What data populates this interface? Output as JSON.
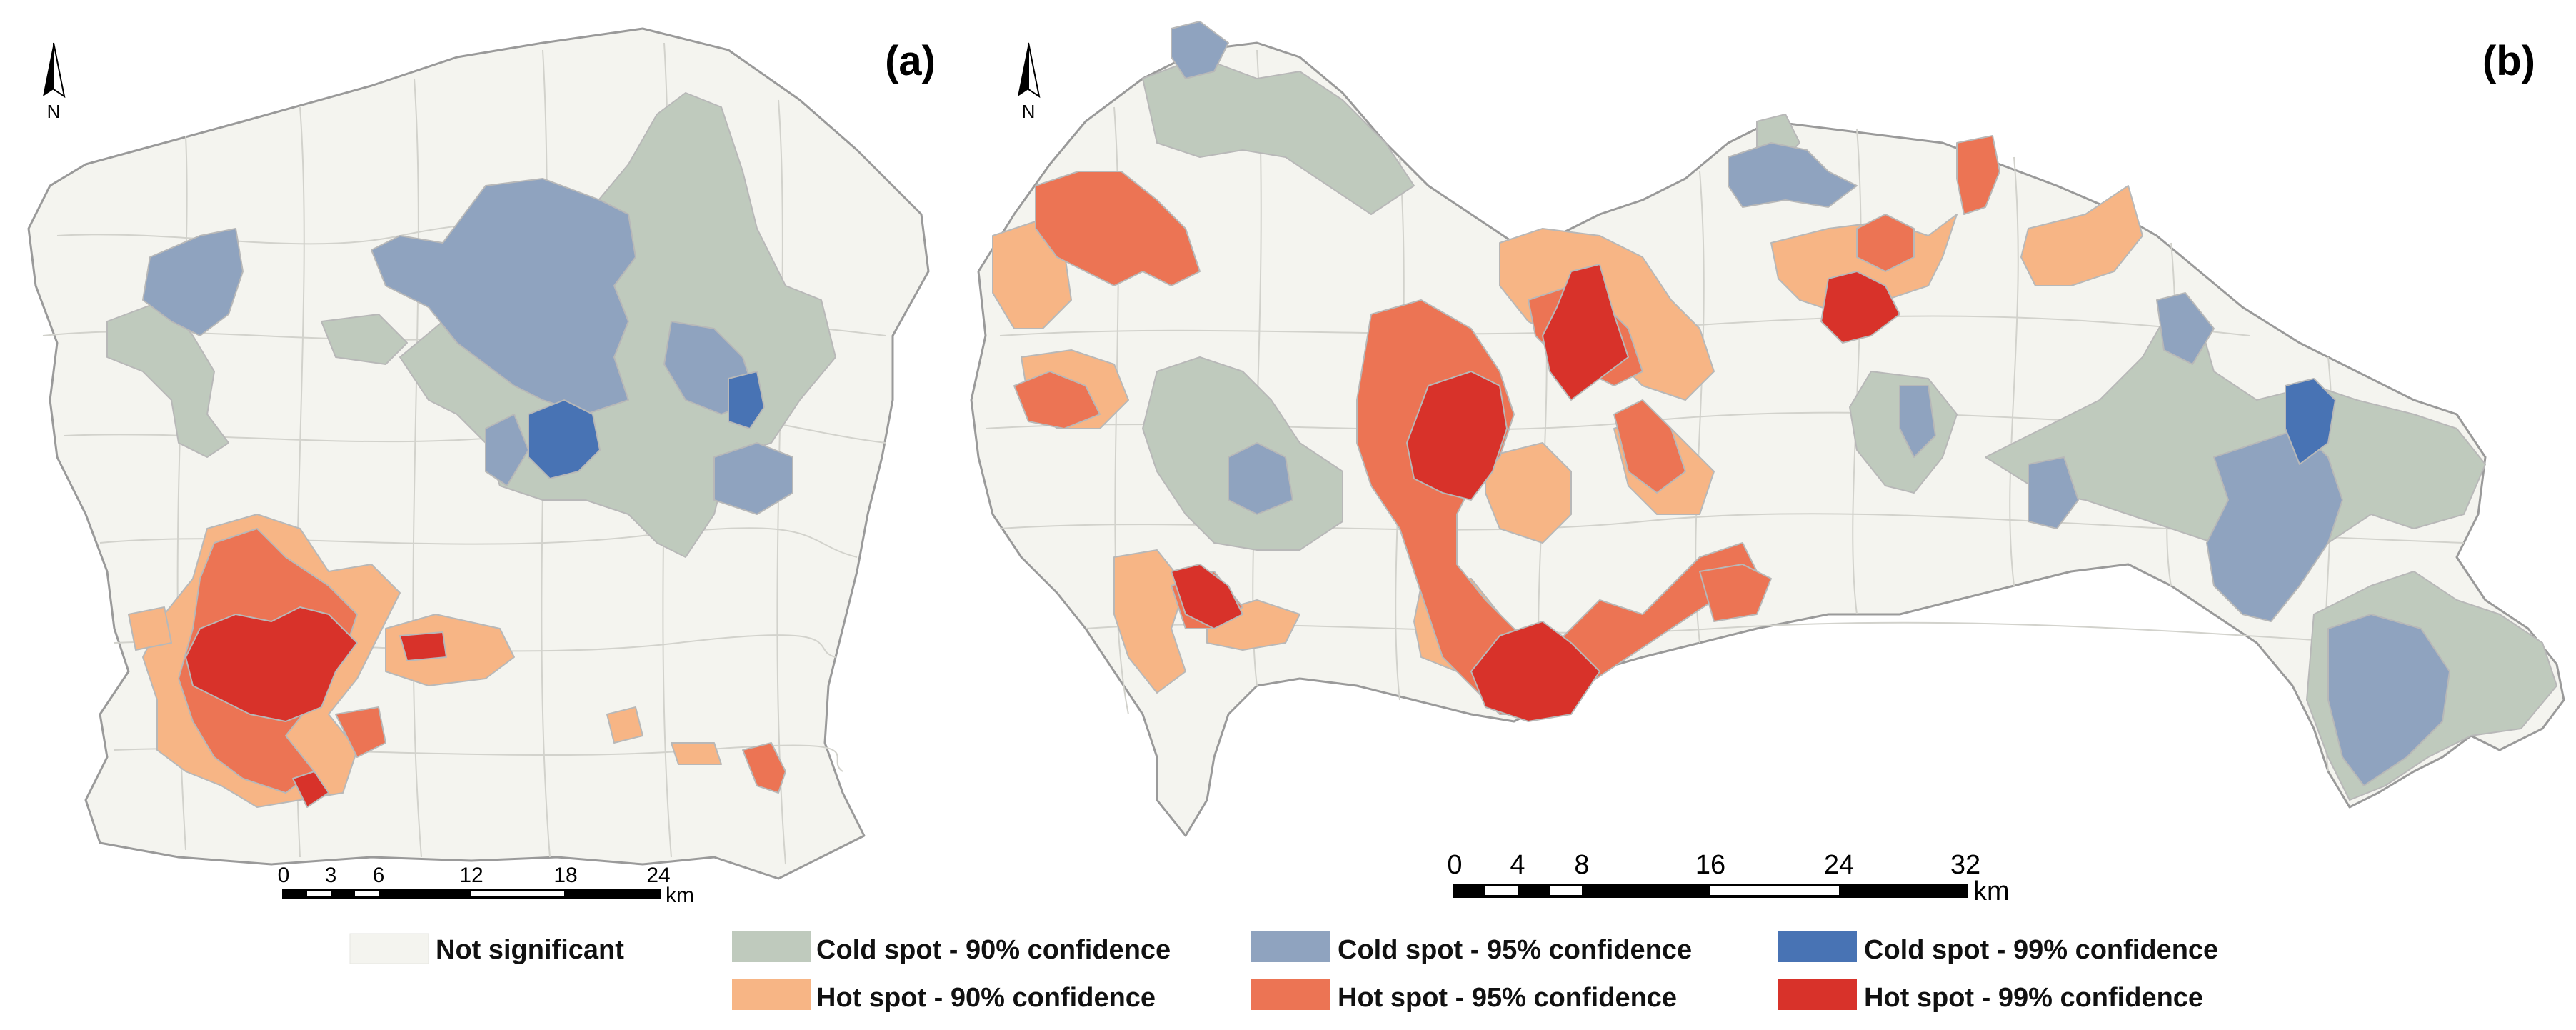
{
  "panels": {
    "a": {
      "label": "(a)",
      "north": "N",
      "scale": {
        "ticks": [
          "0",
          "3",
          "6",
          "12",
          "18",
          "24"
        ],
        "unit": "km"
      }
    },
    "b": {
      "label": "(b)",
      "north": "N",
      "scale": {
        "ticks": [
          "0",
          "4",
          "8",
          "16",
          "24",
          "32"
        ],
        "unit": "km"
      }
    }
  },
  "legend": [
    {
      "key": "ns",
      "label": "Not significant",
      "color": "#f4f4ef"
    },
    {
      "key": "c90",
      "label": "Cold spot - 90% confidence",
      "color": "#bfcabd"
    },
    {
      "key": "c95",
      "label": "Cold spot - 95% confidence",
      "color": "#8fa3bf"
    },
    {
      "key": "c99",
      "label": "Cold spot - 99% confidence",
      "color": "#4873b4"
    },
    {
      "key": "h90",
      "label": "Hot spot - 90% confidence",
      "color": "#f7b585"
    },
    {
      "key": "h95",
      "label": "Hot spot - 95% confidence",
      "color": "#ec7454"
    },
    {
      "key": "h99",
      "label": "Hot spot - 99% confidence",
      "color": "#d8322a"
    }
  ]
}
